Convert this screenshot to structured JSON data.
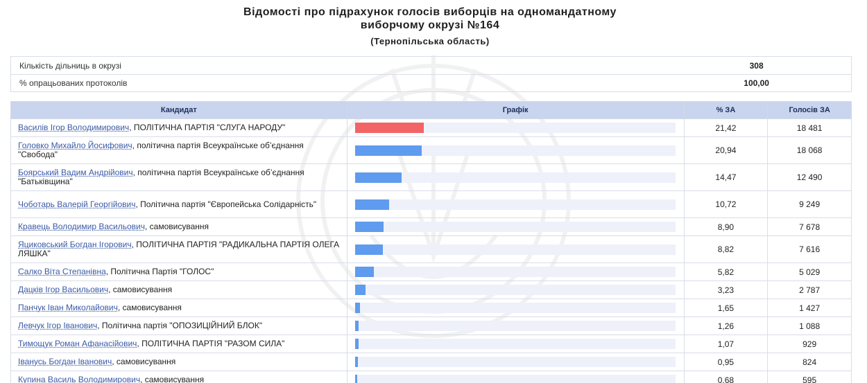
{
  "header": {
    "title_line1": "Відомості про підрахунок голосів виборців на одномандатному",
    "title_line2": "виборчому окрузі №164",
    "subtitle": "(Тернопільська область)"
  },
  "summary": [
    {
      "label": "Кількість дільниць в окрузі",
      "value": "308"
    },
    {
      "label": "% опрацьованих протоколів",
      "value": "100,00"
    }
  ],
  "table": {
    "headers": {
      "candidate": "Кандидат",
      "graph": "Графік",
      "percent": "% ЗА",
      "votes": "Голосів ЗА"
    },
    "colors": {
      "leader": "#f26466",
      "other": "#5f9bee"
    },
    "rows": [
      {
        "name": "Василів Ігор Володимирович",
        "party": ", ПОЛІТИЧНА ПАРТІЯ \"СЛУГА НАРОДУ\"",
        "percent": "21,42",
        "pct_value": 21.42,
        "votes": "18 481"
      },
      {
        "name": "Головко Михайло Йосифович",
        "party": ", політична партія Всеукраїнське об’єднання \"Свобода\"",
        "percent": "20,94",
        "pct_value": 20.94,
        "votes": "18 068"
      },
      {
        "name": "Боярський Вадим Андрійович",
        "party": ", політична партія Всеукраїнське об’єднання \"Батьківщина\"",
        "percent": "14,47",
        "pct_value": 14.47,
        "votes": "12 490"
      },
      {
        "name": "Чоботарь Валерій Георгійович",
        "party": ", Політична партія \"Європейська Солідарність\"",
        "percent": "10,72",
        "pct_value": 10.72,
        "votes": "9 249"
      },
      {
        "name": "Кравець Володимир Васильович",
        "party": ", самовисування",
        "percent": "8,90",
        "pct_value": 8.9,
        "votes": "7 678"
      },
      {
        "name": "Яциковський Богдан Ігорович",
        "party": ", ПОЛІТИЧНА ПАРТІЯ \"РАДИКАЛЬНА ПАРТІЯ ОЛЕГА ЛЯШКА\"",
        "percent": "8,82",
        "pct_value": 8.82,
        "votes": "7 616"
      },
      {
        "name": "Салко Віта Степанівна",
        "party": ", Політична Партія \"ГОЛОС\"",
        "percent": "5,82",
        "pct_value": 5.82,
        "votes": "5 029"
      },
      {
        "name": "Дацків Ігор Васильович",
        "party": ", самовисування",
        "percent": "3,23",
        "pct_value": 3.23,
        "votes": "2 787"
      },
      {
        "name": "Панчук Іван Миколайович",
        "party": ", самовисування",
        "percent": "1,65",
        "pct_value": 1.65,
        "votes": "1 427"
      },
      {
        "name": "Левчук Ігор Іванович",
        "party": ", Політична партія \"ОПОЗИЦІЙНИЙ БЛОК\"",
        "percent": "1,26",
        "pct_value": 1.26,
        "votes": "1 088"
      },
      {
        "name": "Тимощук Роман Афанасійович",
        "party": ", ПОЛІТИЧНА ПАРТІЯ \"РАЗОМ СИЛА\"",
        "percent": "1,07",
        "pct_value": 1.07,
        "votes": "929"
      },
      {
        "name": "Іванусь Богдан Іванович",
        "party": ", самовисування",
        "percent": "0,95",
        "pct_value": 0.95,
        "votes": "824"
      },
      {
        "name": "Купина Василь Володимирович",
        "party": ", самовисування",
        "percent": "0,68",
        "pct_value": 0.68,
        "votes": "595"
      }
    ]
  }
}
